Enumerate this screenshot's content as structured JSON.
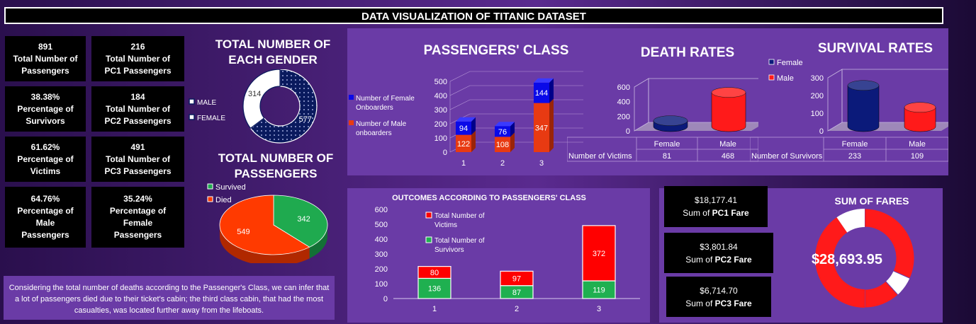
{
  "title": "DATA VISUALIZATION OF TITANIC DATASET",
  "kpis": [
    {
      "value": "891",
      "label": "Total Number of Passengers"
    },
    {
      "value": "216",
      "label": "Total Number of PC1 Passengers"
    },
    {
      "value": "38.38%",
      "label": "Percentage of Survivors"
    },
    {
      "value": "184",
      "label": "Total Number of PC2 Passengers"
    },
    {
      "value": "61.62%",
      "label": "Percentage of Victims"
    },
    {
      "value": "491",
      "label": "Total Number of PC3 Passengers"
    },
    {
      "value": "64.76%",
      "label": "Percentage of Male Passengers"
    },
    {
      "value": "35.24%",
      "label": "Percentage of Female Passengers"
    }
  ],
  "note": "Considering the total number of deaths according to the Passenger's Class, we can infer that a lot of passengers died due to their ticket's cabin; the third class cabin, that had the most casualties, was located further away from the lifeboats.",
  "fares": [
    {
      "value": "$18,177.41",
      "label_prefix": "Sum of ",
      "label_bold": "PC1 Fare"
    },
    {
      "value": "$3,801.84",
      "label_prefix": "Sum of ",
      "label_bold": "PC2 Fare"
    },
    {
      "value": "$6,714.70",
      "label_prefix": "Sum of ",
      "label_bold": "PC3 Fare"
    }
  ],
  "chart_data": [
    {
      "id": "gender",
      "type": "pie",
      "variant": "doughnut",
      "title": "TOTAL NUMBER OF EACH GENDER",
      "slices": [
        {
          "name": "MALE",
          "value": 577,
          "color": "#0a1a5e"
        },
        {
          "name": "FEMALE",
          "value": 314,
          "color": "#ffffff"
        }
      ],
      "legend": "left"
    },
    {
      "id": "passengers",
      "type": "pie",
      "variant": "3d",
      "title": "TOTAL NUMBER OF PASSENGERS",
      "slices": [
        {
          "name": "Survived",
          "value": 342,
          "color": "#1faa4f"
        },
        {
          "name": "Died",
          "value": 549,
          "color": "#ff3a00"
        }
      ],
      "legend": "top-left"
    },
    {
      "id": "class",
      "type": "bar",
      "variant": "stacked-3d",
      "title": "PASSENGERS' CLASS",
      "categories": [
        "1",
        "2",
        "3"
      ],
      "series": [
        {
          "name": "Number of Male onboarders",
          "values": [
            122,
            108,
            347
          ],
          "color": "#e83a12"
        },
        {
          "name": "Number of Female Onboarders",
          "values": [
            94,
            76,
            144
          ],
          "color": "#0a0ae8"
        }
      ],
      "ylim": [
        0,
        500
      ],
      "yticks": [
        0,
        100,
        200,
        300,
        400,
        500
      ],
      "legend": "left"
    },
    {
      "id": "death",
      "type": "bar",
      "variant": "cylinder-3d",
      "title": "DEATH RATES",
      "categories": [
        "Female",
        "Male"
      ],
      "values": [
        81,
        468
      ],
      "colors": [
        "#0b1a7a",
        "#ff1a1a"
      ],
      "ylim": [
        0,
        600
      ],
      "yticks": [
        0,
        200,
        400,
        600
      ],
      "table": {
        "row_label": "Number of Victims",
        "values": [
          "81",
          "468"
        ]
      }
    },
    {
      "id": "survival",
      "type": "bar",
      "variant": "cylinder-3d",
      "title": "SURVIVAL RATES",
      "categories": [
        "Female",
        "Male"
      ],
      "values": [
        233,
        109
      ],
      "colors": [
        "#0b1a7a",
        "#ff1a1a"
      ],
      "ylim": [
        0,
        300
      ],
      "yticks": [
        0,
        100,
        200,
        300
      ],
      "legend_entries": [
        "Female",
        "Male"
      ],
      "table": {
        "row_label": "Number of Survivors",
        "values": [
          "233",
          "109"
        ]
      }
    },
    {
      "id": "outcomes",
      "type": "bar",
      "variant": "stacked",
      "title": "OUTCOMES ACCORDING TO PASSENGERS' CLASS",
      "categories": [
        "1",
        "2",
        "3"
      ],
      "series": [
        {
          "name": "Total Number of Survivors",
          "values": [
            136,
            87,
            119
          ],
          "color": "#1fb050"
        },
        {
          "name": "Total Number of Victims",
          "values": [
            80,
            97,
            372
          ],
          "color": "#ff0000"
        }
      ],
      "ylim": [
        0,
        600
      ],
      "yticks": [
        0,
        100,
        200,
        300,
        400,
        500,
        600
      ],
      "legend": "top-left"
    },
    {
      "id": "fares",
      "type": "pie",
      "variant": "half-doughnut",
      "title": "SUM OF FARES",
      "center_label": "$28,693.95",
      "slices": [
        {
          "name": "PC1",
          "value": 18177.41,
          "color": "#ff1a1a"
        },
        {
          "name": "PC2",
          "value": 3801.84,
          "color": "#ffffff"
        },
        {
          "name": "PC3",
          "value": 6714.7,
          "color": "#ff1a1a"
        }
      ]
    }
  ]
}
